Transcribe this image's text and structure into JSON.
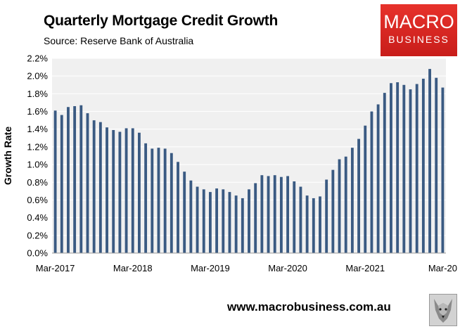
{
  "header": {
    "title": "Quarterly Mortgage Credit Growth",
    "subtitle": "Source: Reserve Bank of Australia"
  },
  "logo": {
    "line1": "MACRO",
    "line2": "BUSINESS"
  },
  "footer": {
    "url": "www.macrobusiness.com.au",
    "mascot_icon": "wolf-icon"
  },
  "colors": {
    "bar": "#3a5a82",
    "plot_bg": "#f0f0f0",
    "grid": "#ffffff",
    "logo_bg": "#d9261f"
  },
  "chart_data": {
    "type": "bar",
    "title": "Quarterly Mortgage Credit Growth",
    "ylabel": "Growth Rate",
    "xlabel": "",
    "ylim": [
      0,
      2.2
    ],
    "ytick_labels": [
      "0.0%",
      "0.2%",
      "0.4%",
      "0.6%",
      "0.8%",
      "1.0%",
      "1.2%",
      "1.4%",
      "1.6%",
      "1.8%",
      "2.0%",
      "2.2%"
    ],
    "yticks": [
      0,
      0.2,
      0.4,
      0.6,
      0.8,
      1.0,
      1.2,
      1.4,
      1.6,
      1.8,
      2.0,
      2.2
    ],
    "xtick_labels": [
      "Mar-2017",
      "Mar-2018",
      "Mar-2019",
      "Mar-2020",
      "Mar-2021",
      "Mar-20"
    ],
    "xtick_indices": [
      0,
      12,
      24,
      36,
      48,
      60
    ],
    "grid": "horizontal",
    "legend": "none",
    "first_month": "Mar-2017",
    "frequency": "monthly",
    "values": [
      1.61,
      1.56,
      1.65,
      1.66,
      1.67,
      1.58,
      1.5,
      1.48,
      1.42,
      1.39,
      1.37,
      1.41,
      1.41,
      1.36,
      1.24,
      1.18,
      1.19,
      1.18,
      1.13,
      1.03,
      0.92,
      0.82,
      0.75,
      0.72,
      0.69,
      0.73,
      0.72,
      0.69,
      0.65,
      0.62,
      0.72,
      0.79,
      0.88,
      0.87,
      0.88,
      0.86,
      0.87,
      0.81,
      0.75,
      0.65,
      0.62,
      0.64,
      0.83,
      0.94,
      1.06,
      1.09,
      1.19,
      1.29,
      1.44,
      1.6,
      1.68,
      1.81,
      1.92,
      1.93,
      1.9,
      1.85,
      1.91,
      1.97,
      2.08,
      1.98,
      1.87
    ]
  }
}
